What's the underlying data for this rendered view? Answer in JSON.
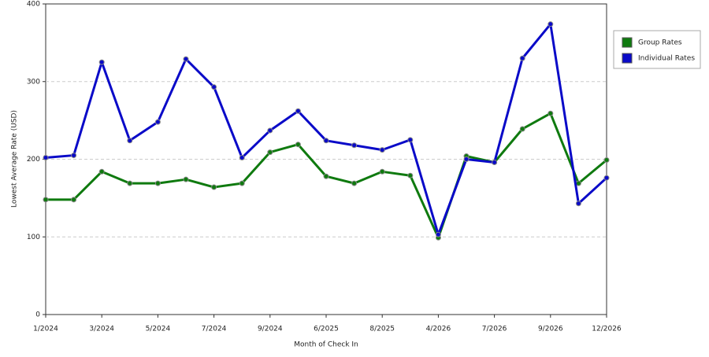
{
  "chart_data": {
    "type": "line",
    "x_label": "Month of Check In",
    "y_label": "Lowest Average Rate (USD)",
    "categories": [
      "1/2024",
      null,
      "3/2024",
      null,
      "5/2024",
      null,
      "7/2024",
      null,
      "9/2024",
      null,
      "6/2025",
      null,
      "8/2025",
      null,
      "4/2026",
      null,
      "7/2026",
      null,
      "9/2026",
      null,
      "12/2026"
    ],
    "series": [
      {
        "name": "Group Rates",
        "color": "#0f7a0f",
        "values": [
          148,
          148,
          184,
          169,
          169,
          174,
          164,
          169,
          209,
          219,
          178,
          169,
          184,
          179,
          99,
          204,
          196,
          239,
          259,
          169,
          199
        ]
      },
      {
        "name": "Individual Rates",
        "color": "#0a0ac8",
        "values": [
          202,
          205,
          325,
          224,
          248,
          329,
          293,
          202,
          237,
          262,
          224,
          218,
          212,
          225,
          103,
          200,
          196,
          330,
          374,
          143,
          176
        ]
      }
    ],
    "ylim": [
      0,
      400
    ],
    "yticks": [
      0,
      100,
      200,
      300,
      400
    ],
    "grid": true,
    "legend": "right"
  }
}
